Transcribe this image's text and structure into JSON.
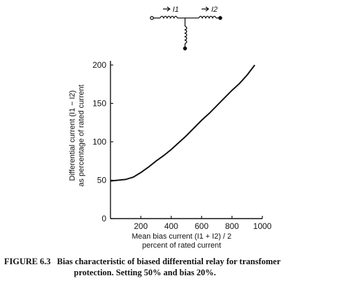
{
  "circuit": {
    "current_1": "I1",
    "current_2": "I2"
  },
  "chart_data": {
    "type": "line",
    "title": "",
    "xlabel": "Mean bias current (I1 + I2) / 2",
    "xlabel_line2": "percent of rated current",
    "ylabel": "Differential current (I1 − I2)",
    "ylabel_line2": "as percentage of rated current",
    "xlim": [
      0,
      1000
    ],
    "ylim": [
      0,
      200
    ],
    "xticks": [
      "200",
      "400",
      "600",
      "800",
      "1000"
    ],
    "yticks": [
      "0",
      "50",
      "100",
      "150",
      "200"
    ],
    "grid": false,
    "series": [
      {
        "name": "",
        "x": [
          0,
          50,
          100,
          150,
          200,
          250,
          300,
          350,
          400,
          450,
          500,
          550,
          600,
          650,
          700,
          750,
          800,
          850,
          900,
          950
        ],
        "y": [
          49,
          50,
          51,
          54,
          60,
          67,
          75,
          82,
          90,
          99,
          108,
          118,
          128,
          137,
          147,
          157,
          167,
          176,
          187,
          200
        ]
      }
    ]
  },
  "caption": {
    "label": "FIGURE 6.3",
    "line1": "Bias characteristic of biased differential relay for transfomer",
    "line2": "protection. Setting 50% and bias 20%."
  }
}
